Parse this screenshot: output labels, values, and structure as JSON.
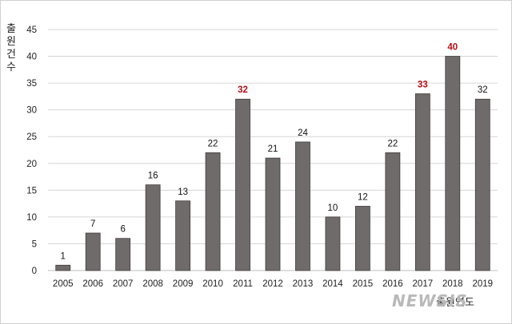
{
  "chart_data": {
    "type": "bar",
    "categories": [
      "2005",
      "2006",
      "2007",
      "2008",
      "2009",
      "2010",
      "2011",
      "2012",
      "2013",
      "2014",
      "2015",
      "2016",
      "2017",
      "2018",
      "2019"
    ],
    "values": [
      1,
      7,
      6,
      16,
      13,
      22,
      32,
      21,
      24,
      10,
      12,
      22,
      33,
      40,
      32
    ],
    "highlighted_categories": [
      "2011",
      "2017",
      "2018"
    ],
    "title": "",
    "xlabel": "출원연도",
    "ylabel": "출원건수",
    "ylim": [
      0,
      45
    ],
    "yticks": [
      "0",
      "5",
      "10",
      "15",
      "20",
      "25",
      "30",
      "35",
      "40",
      "45"
    ],
    "grid": "horizontal",
    "legend": "none"
  },
  "colors": {
    "bar": "#6f6b6a",
    "bar_edge": "#3e3b3a",
    "highlight_label": "#b80f14",
    "grid": "#d6d6d6"
  },
  "watermark": "NEWSIS"
}
